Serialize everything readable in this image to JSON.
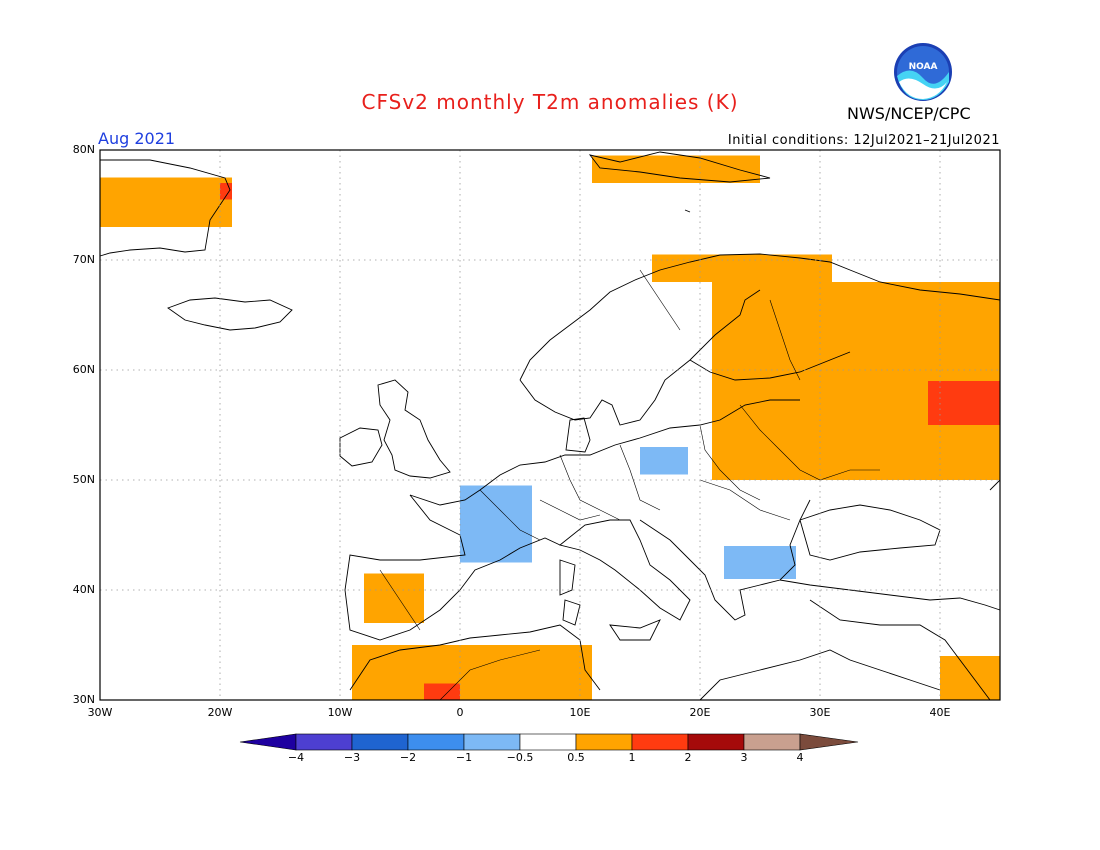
{
  "header": {
    "title": "CFSv2 monthly T2m anomalies (K)",
    "agency": "NWS/NCEP/CPC",
    "logo_text": "NOAA",
    "valid_month": "Aug 2021",
    "initial_conditions": "Initial conditions: 12Jul2021–21Jul2021"
  },
  "map": {
    "projection": "cylindrical",
    "lon_range": [
      -30,
      45
    ],
    "lat_range": [
      30,
      80
    ],
    "lat_labels": [
      "80N",
      "70N",
      "60N",
      "50N",
      "40N",
      "30N"
    ],
    "lon_labels": [
      "30W",
      "20W",
      "10W",
      "0",
      "10E",
      "20E",
      "30E",
      "40E"
    ],
    "anomaly_regions": [
      {
        "name": "greenland-coast",
        "level": "0.5-1",
        "lon": [
          -30,
          -19
        ],
        "lat": [
          73,
          77.5
        ]
      },
      {
        "name": "greenland-east-warm",
        "level": "1-2",
        "lon": [
          -20,
          -19
        ],
        "lat": [
          75.5,
          77
        ]
      },
      {
        "name": "svalbard",
        "level": "0.5-1",
        "lon": [
          11,
          25
        ],
        "lat": [
          77,
          79.5
        ]
      },
      {
        "name": "northern-scandinavia",
        "level": "0.5-1",
        "lon": [
          16,
          31
        ],
        "lat": [
          68,
          70.5
        ]
      },
      {
        "name": "finland-russia",
        "level": "0.5-1",
        "lon": [
          21,
          45
        ],
        "lat": [
          50,
          68
        ]
      },
      {
        "name": "russia-hotspot",
        "level": "1-2",
        "lon": [
          39,
          45
        ],
        "lat": [
          55,
          59
        ]
      },
      {
        "name": "iberia",
        "level": "0.5-1",
        "lon": [
          -8,
          -3
        ],
        "lat": [
          37,
          41.5
        ]
      },
      {
        "name": "north-africa",
        "level": "0.5-1",
        "lon": [
          -9,
          11
        ],
        "lat": [
          30,
          35
        ]
      },
      {
        "name": "morocco-hotspot",
        "level": "1-2",
        "lon": [
          -3,
          0
        ],
        "lat": [
          30,
          31.5
        ]
      },
      {
        "name": "middle-east",
        "level": "0.5-1",
        "lon": [
          40,
          45
        ],
        "lat": [
          30,
          34
        ]
      },
      {
        "name": "france-cool",
        "level": "-1--0.5",
        "lon": [
          0,
          6
        ],
        "lat": [
          42.5,
          49.5
        ]
      },
      {
        "name": "poland-cool",
        "level": "-1--0.5",
        "lon": [
          15,
          19
        ],
        "lat": [
          50.5,
          53
        ]
      },
      {
        "name": "black-sea-cool",
        "level": "-1--0.5",
        "lon": [
          22,
          28
        ],
        "lat": [
          41,
          44
        ]
      }
    ]
  },
  "colorbar": {
    "levels": [
      "-4",
      "-3",
      "-2",
      "-1",
      "-0.5",
      "0.5",
      "1",
      "2",
      "3",
      "4"
    ],
    "colors": {
      "lt-4": "#1e00a0",
      "-4--3": "#4d3fd1",
      "-3--2": "#1f64d0",
      "-2--1": "#3d8eee",
      "-1--0.5": "#7db9f5",
      "-0.5-0.5": "#ffffff",
      "0.5-1": "#ffa400",
      "1-2": "#ff3b10",
      "2-3": "#a50a0a",
      "3-4": "#c9a08f",
      "gt4": "#7b4b3c"
    }
  }
}
